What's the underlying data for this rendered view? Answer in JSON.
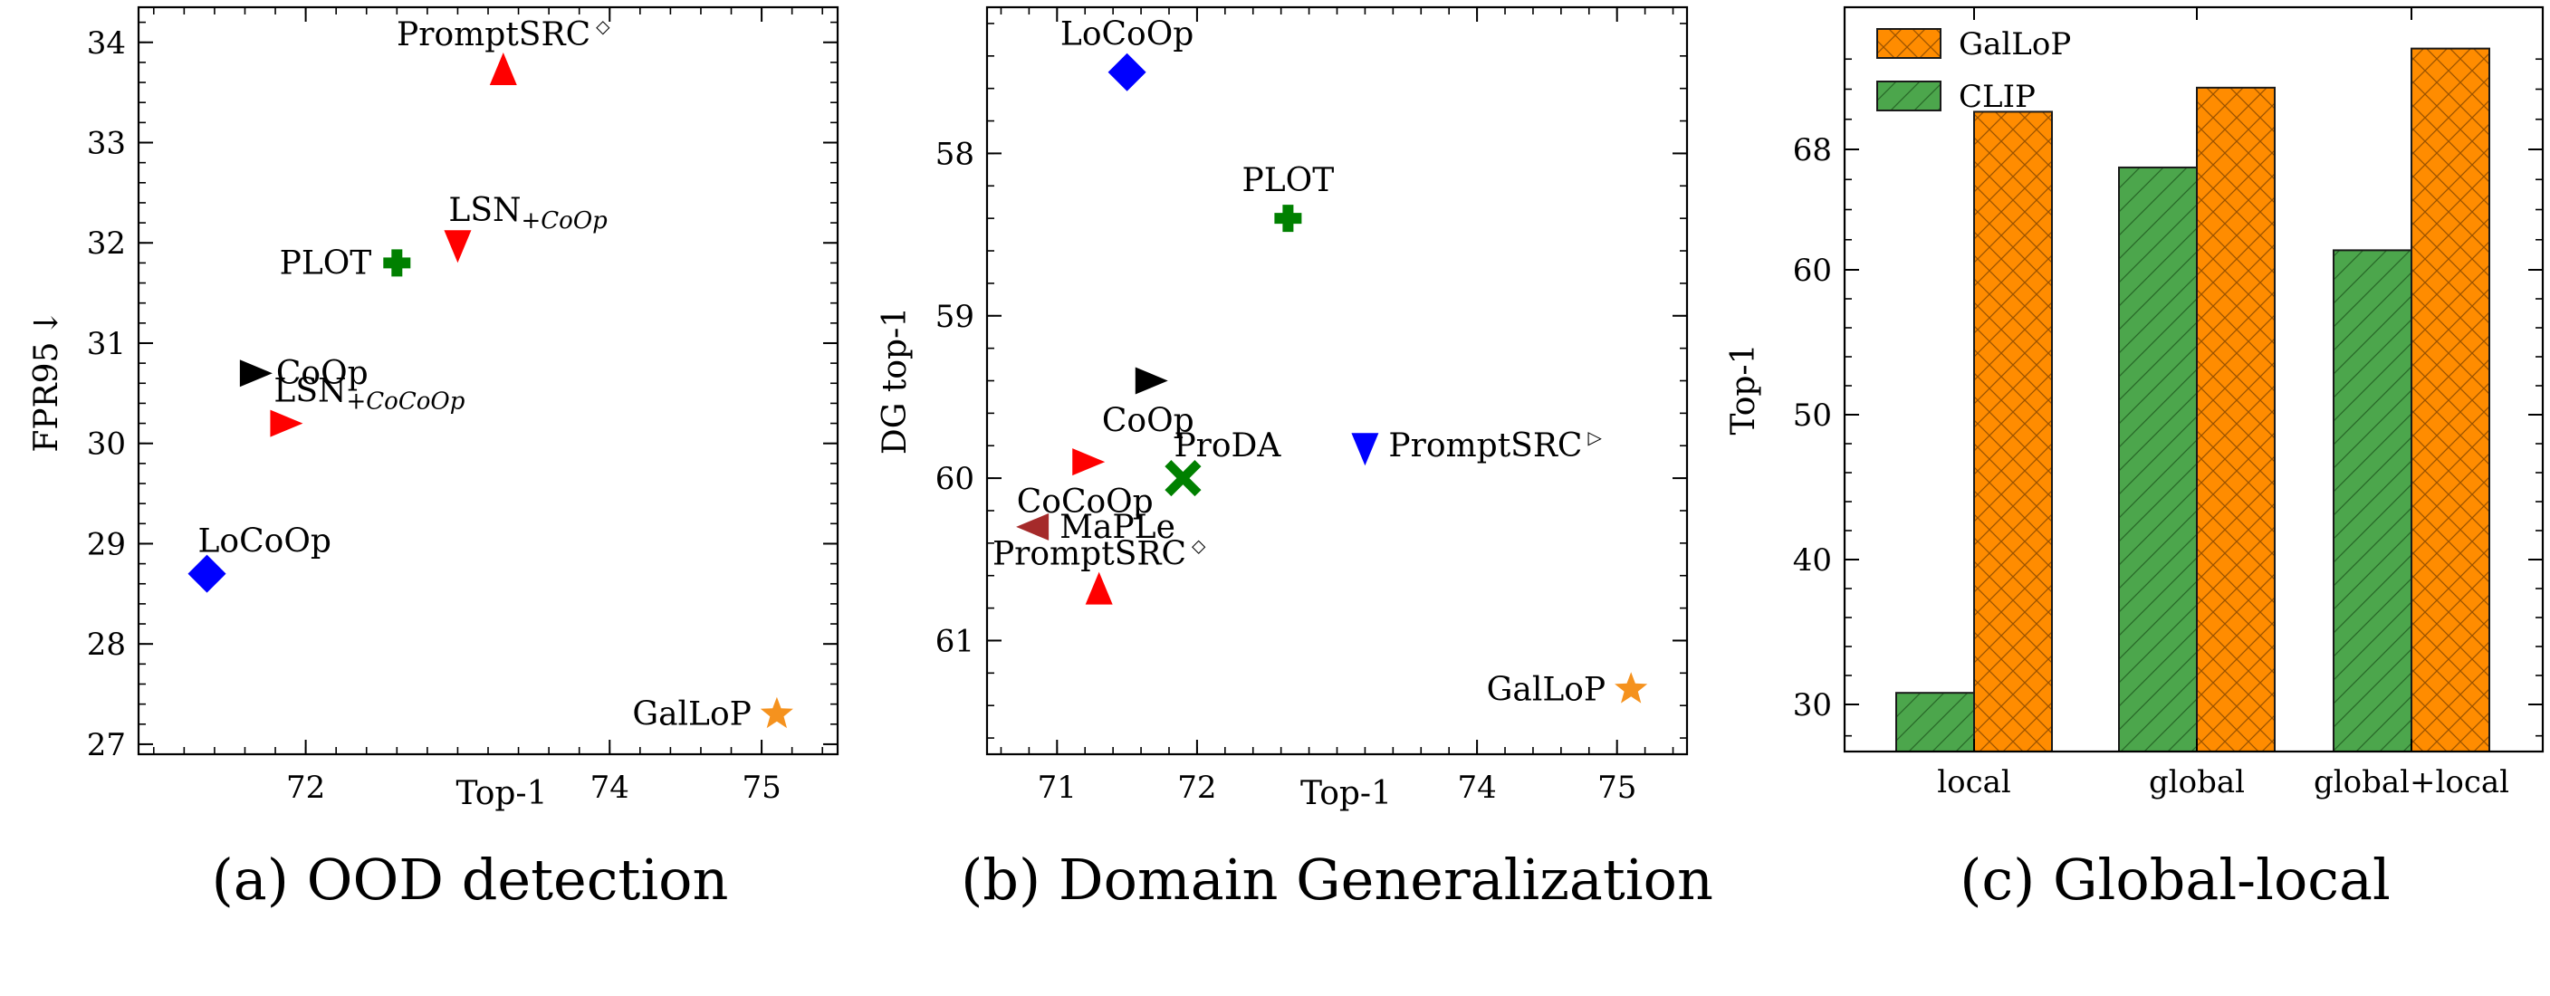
{
  "chart_data": [
    {
      "type": "scatter",
      "caption": "(a) OOD detection",
      "xlabel": "Top-1",
      "ylabel": "FPR95",
      "ylabel_arrow": "↓",
      "xlim": [
        70.9,
        75.5
      ],
      "ylim": [
        34.35,
        26.9
      ],
      "y_inverted": true,
      "xticks": [
        72,
        74,
        75
      ],
      "yticks": [
        27,
        28,
        29,
        30,
        31,
        32,
        33,
        34
      ],
      "points": [
        {
          "label": "GalLoP",
          "x": 75.1,
          "y": 27.3,
          "marker": "star",
          "color": "#f5921e",
          "label_pos": "left"
        },
        {
          "label": "LoCoOp",
          "x": 71.35,
          "y": 28.7,
          "marker": "diamond",
          "color": "#0000ff",
          "label_pos": "above-right"
        },
        {
          "label": "LSN",
          "sub": "+CoCoOp",
          "x": 71.85,
          "y": 30.2,
          "marker": "tri-right",
          "color": "#ff0000",
          "label_pos": "above-right"
        },
        {
          "label": "CoOp",
          "x": 71.65,
          "y": 30.7,
          "marker": "tri-right",
          "color": "#000000",
          "label_pos": "right"
        },
        {
          "label": "PLOT",
          "x": 72.6,
          "y": 31.8,
          "marker": "plus",
          "color": "#008000",
          "label_pos": "left"
        },
        {
          "label": "LSN",
          "sub": "+CoOp",
          "x": 73.0,
          "y": 32.0,
          "marker": "tri-down",
          "color": "#ff0000",
          "label_pos": "above-right"
        },
        {
          "label": "PromptSRC",
          "sup": "◇",
          "x": 73.3,
          "y": 33.7,
          "marker": "tri-up",
          "color": "#ff0000",
          "label_pos": "above"
        }
      ]
    },
    {
      "type": "scatter",
      "caption": "(b) Domain Generalization",
      "xlabel": "Top-1",
      "ylabel": "DG top-1",
      "xlim": [
        70.5,
        75.5
      ],
      "ylim": [
        57.1,
        61.7
      ],
      "xticks": [
        71,
        72,
        74,
        75
      ],
      "yticks": [
        58,
        59,
        60,
        61
      ],
      "points": [
        {
          "label": "GalLoP",
          "x": 75.1,
          "y": 61.3,
          "marker": "star",
          "color": "#f5921e",
          "label_pos": "left"
        },
        {
          "label": "PromptSRC",
          "sup": "◇",
          "x": 71.3,
          "y": 60.7,
          "marker": "tri-up",
          "color": "#ff0000",
          "label_pos": "above"
        },
        {
          "label": "MaPLe",
          "x": 70.85,
          "y": 60.3,
          "marker": "tri-left",
          "color": "#a52a2a",
          "label_pos": "right"
        },
        {
          "label": "ProDA",
          "x": 71.9,
          "y": 60.0,
          "marker": "x",
          "color": "#008000",
          "label_pos": "above-right"
        },
        {
          "label": "CoCoOp",
          "x": 71.2,
          "y": 59.9,
          "marker": "tri-right",
          "color": "#ff0000",
          "label_pos": "below"
        },
        {
          "label": "PromptSRC",
          "sup": "▷",
          "x": 73.2,
          "y": 59.8,
          "marker": "tri-down",
          "color": "#0000ff",
          "label_pos": "right"
        },
        {
          "label": "CoOp",
          "x": 71.65,
          "y": 59.4,
          "marker": "tri-right",
          "color": "#000000",
          "label_pos": "below"
        },
        {
          "label": "PLOT",
          "x": 72.65,
          "y": 58.4,
          "marker": "plus",
          "color": "#008000",
          "label_pos": "above"
        },
        {
          "label": "LoCoOp",
          "x": 71.5,
          "y": 57.5,
          "marker": "diamond",
          "color": "#0000ff",
          "label_pos": "above"
        }
      ]
    },
    {
      "type": "bar",
      "caption": "(c) Global-local",
      "ylabel": "Top-1",
      "categories": [
        "local",
        "global",
        "global+local"
      ],
      "yticks": [
        30,
        40,
        50,
        60,
        68
      ],
      "series": [
        {
          "name": "CLIP",
          "color": "#4ca64c",
          "hatch": "diag",
          "values": [
            30.8,
            66.8,
            61.3
          ]
        },
        {
          "name": "GalLoP",
          "color": "#ff8c00",
          "hatch": "cross",
          "values": [
            70.5,
            72.1,
            74.7
          ]
        }
      ],
      "legend_order": [
        "GalLoP",
        "CLIP"
      ],
      "legend_loc": "top-left"
    }
  ]
}
